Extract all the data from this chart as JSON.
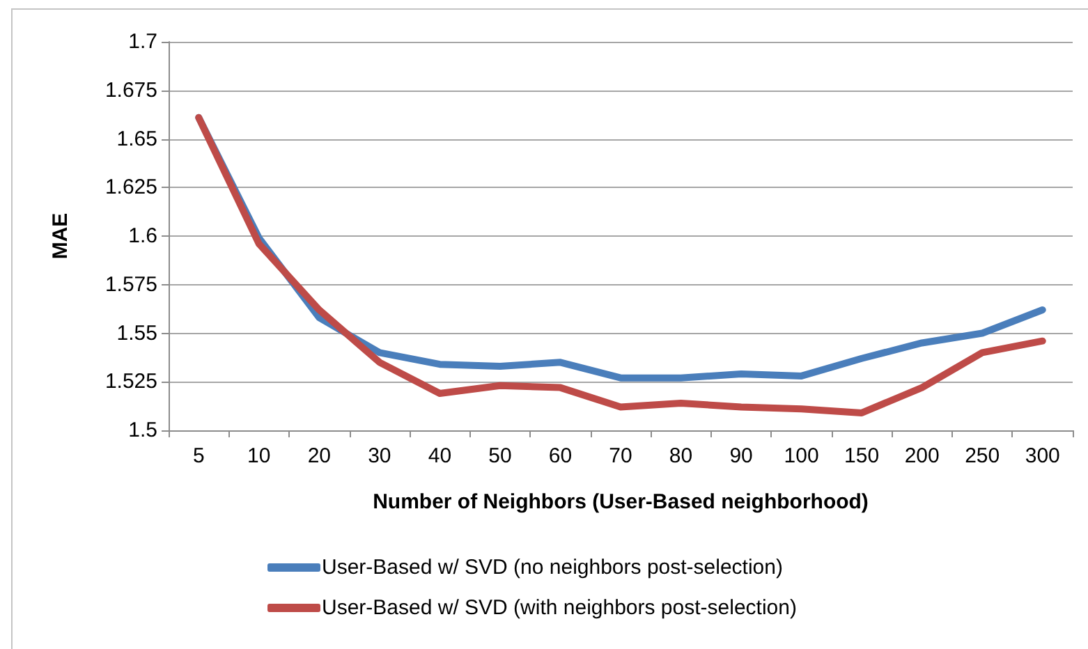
{
  "chart_data": {
    "type": "line",
    "xlabel": "Number of Neighbors (User-Based neighborhood)",
    "ylabel": "MAE",
    "categories": [
      "5",
      "10",
      "20",
      "30",
      "40",
      "50",
      "60",
      "70",
      "80",
      "90",
      "100",
      "150",
      "200",
      "250",
      "300"
    ],
    "series": [
      {
        "name": "User-Based w/ SVD (no neighbors post-selection)",
        "color": "#4a7ebb",
        "values": [
          1.661,
          1.599,
          1.558,
          1.54,
          1.534,
          1.533,
          1.535,
          1.527,
          1.527,
          1.529,
          1.528,
          1.537,
          1.545,
          1.55,
          1.562
        ]
      },
      {
        "name": "User-Based w/ SVD (with neighbors post-selection)",
        "color": "#be4b48",
        "values": [
          1.661,
          1.596,
          1.562,
          1.535,
          1.519,
          1.523,
          1.522,
          1.512,
          1.514,
          1.512,
          1.511,
          1.509,
          1.522,
          1.54,
          1.546
        ]
      }
    ],
    "ylim": [
      1.5,
      1.7
    ],
    "yticks": [
      1.5,
      1.525,
      1.55,
      1.575,
      1.6,
      1.625,
      1.65,
      1.675,
      1.7
    ],
    "grid": "y",
    "legend": "bottom",
    "marker": "none",
    "line_style": "solid"
  }
}
